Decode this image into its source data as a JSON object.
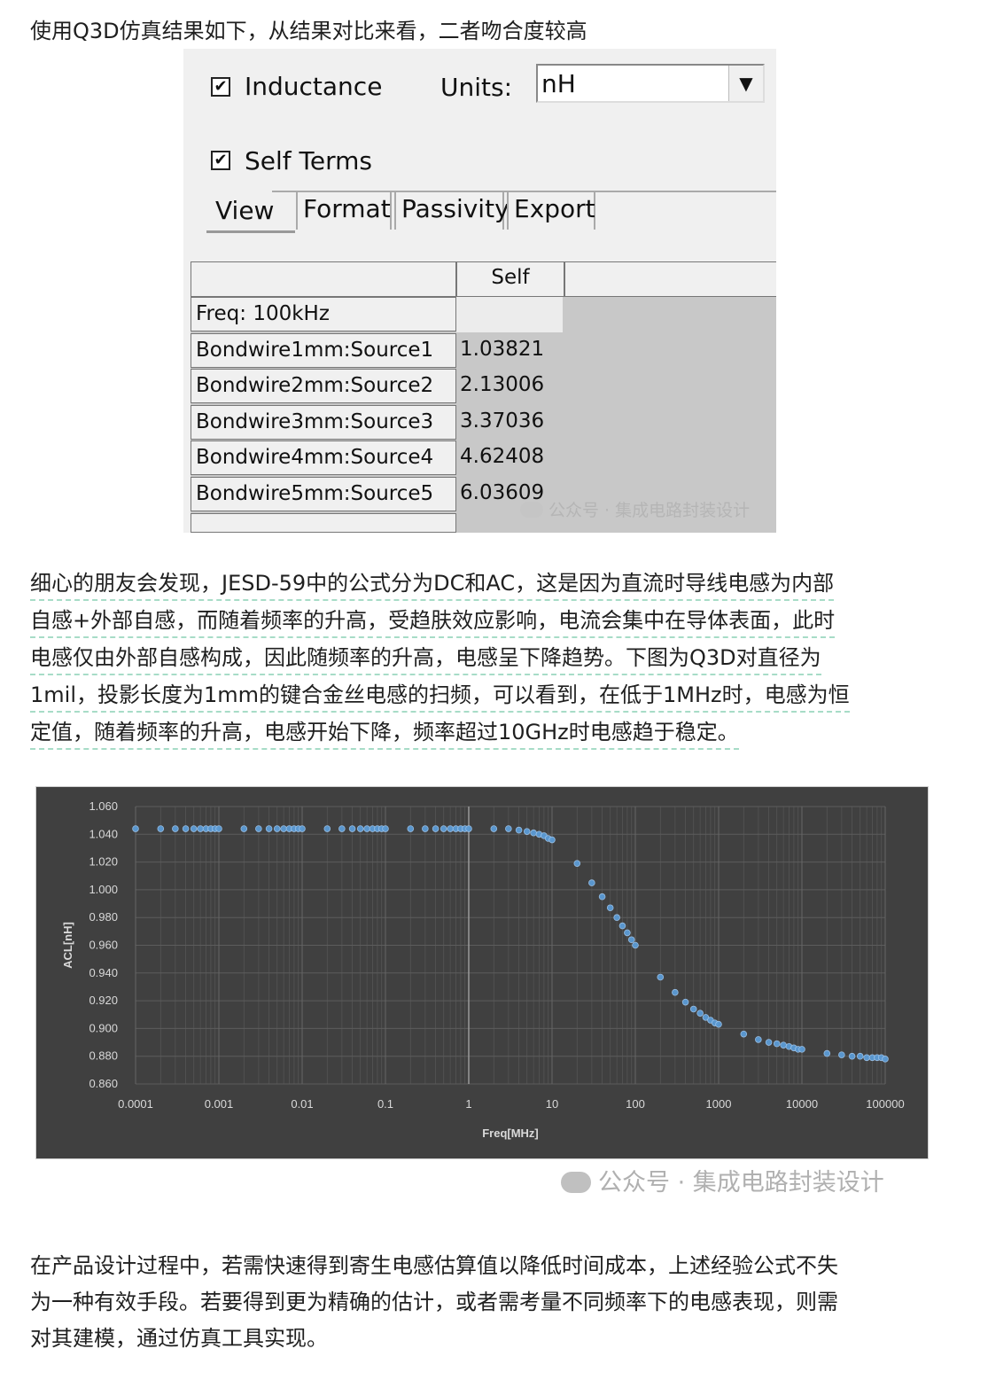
{
  "intro_text": "使用Q3D仿真结果如下，从结果对比来看，二者吻合度较高",
  "q3d": {
    "inductance_label": "Inductance",
    "inductance_checked": true,
    "units_label": "Units:",
    "units_value": "nH",
    "self_terms_label": "Self Terms",
    "self_terms_checked": true,
    "tabs": [
      "View",
      "Format",
      "Passivity",
      "Export"
    ],
    "column_header": "Self",
    "freq_label": "Freq: 100kHz",
    "rows": [
      {
        "name": "Bondwire1mm:Source1",
        "value": "1.03821"
      },
      {
        "name": "Bondwire2mm:Source2",
        "value": "2.13006"
      },
      {
        "name": "Bondwire3mm:Source3",
        "value": "3.37036"
      },
      {
        "name": "Bondwire4mm:Source4",
        "value": "4.62408"
      },
      {
        "name": "Bondwire5mm:Source5",
        "value": "6.03609"
      }
    ],
    "watermark": "公众号 · 集成电路封装设计"
  },
  "mid_lines": [
    "细心的朋友会发现，JESD-59中的公式分为DC和AC，这是因为直流时导线电感为内部",
    "自感+外部自感，而随着频率的升高，受趋肤效应影响，电流会集中在导体表面，此时",
    "电感仅由外部自感构成，因此随频率的升高，电感呈下降趋势。下图为Q3D对直径为",
    "1mil，投影长度为1mm的键合金丝电感的扫频，可以看到，在低于1MHz时，电感为恒",
    "定值，随着频率的升高，电感开始下降，频率超过10GHz时电感趋于稳定。"
  ],
  "chart_data": {
    "type": "scatter",
    "xlabel": "Freq[MHz]",
    "ylabel": "ACL[nH]",
    "xscale": "log",
    "xlim": [
      0.0001,
      100000
    ],
    "ylim": [
      0.86,
      1.06
    ],
    "x_ticks": [
      "0.0001",
      "0.001",
      "0.01",
      "0.1",
      "1",
      "10",
      "100",
      "1000",
      "10000",
      "100000"
    ],
    "y_ticks": [
      "1.060",
      "1.040",
      "1.020",
      "1.000",
      "0.980",
      "0.960",
      "0.940",
      "0.920",
      "0.900",
      "0.880",
      "0.860"
    ],
    "grid": "on",
    "background": "#404040",
    "point_color": "#5b9bd5",
    "series": [
      {
        "points": [
          [
            0.0001,
            1.044
          ],
          [
            0.0002,
            1.044
          ],
          [
            0.0003,
            1.044
          ],
          [
            0.0004,
            1.044
          ],
          [
            0.0005,
            1.044
          ],
          [
            0.0006,
            1.044
          ],
          [
            0.0007,
            1.044
          ],
          [
            0.0008,
            1.044
          ],
          [
            0.0009,
            1.044
          ],
          [
            0.001,
            1.044
          ],
          [
            0.002,
            1.044
          ],
          [
            0.003,
            1.044
          ],
          [
            0.004,
            1.044
          ],
          [
            0.005,
            1.044
          ],
          [
            0.006,
            1.044
          ],
          [
            0.007,
            1.044
          ],
          [
            0.008,
            1.044
          ],
          [
            0.009,
            1.044
          ],
          [
            0.01,
            1.044
          ],
          [
            0.02,
            1.044
          ],
          [
            0.03,
            1.044
          ],
          [
            0.04,
            1.044
          ],
          [
            0.05,
            1.044
          ],
          [
            0.06,
            1.044
          ],
          [
            0.07,
            1.044
          ],
          [
            0.08,
            1.044
          ],
          [
            0.09,
            1.044
          ],
          [
            0.1,
            1.044
          ],
          [
            0.2,
            1.044
          ],
          [
            0.3,
            1.044
          ],
          [
            0.4,
            1.044
          ],
          [
            0.5,
            1.044
          ],
          [
            0.6,
            1.044
          ],
          [
            0.7,
            1.044
          ],
          [
            0.8,
            1.044
          ],
          [
            0.9,
            1.044
          ],
          [
            1,
            1.044
          ],
          [
            2,
            1.044
          ],
          [
            3,
            1.044
          ],
          [
            4,
            1.043
          ],
          [
            5,
            1.042
          ],
          [
            6,
            1.041
          ],
          [
            7,
            1.04
          ],
          [
            8,
            1.039
          ],
          [
            9,
            1.037
          ],
          [
            10,
            1.036
          ],
          [
            20,
            1.019
          ],
          [
            30,
            1.005
          ],
          [
            40,
            0.995
          ],
          [
            50,
            0.987
          ],
          [
            60,
            0.98
          ],
          [
            70,
            0.974
          ],
          [
            80,
            0.969
          ],
          [
            90,
            0.964
          ],
          [
            100,
            0.96
          ],
          [
            200,
            0.937
          ],
          [
            300,
            0.926
          ],
          [
            400,
            0.919
          ],
          [
            500,
            0.914
          ],
          [
            600,
            0.911
          ],
          [
            700,
            0.908
          ],
          [
            800,
            0.906
          ],
          [
            900,
            0.904
          ],
          [
            1000,
            0.903
          ],
          [
            2000,
            0.896
          ],
          [
            3000,
            0.892
          ],
          [
            4000,
            0.89
          ],
          [
            5000,
            0.889
          ],
          [
            6000,
            0.888
          ],
          [
            7000,
            0.887
          ],
          [
            8000,
            0.886
          ],
          [
            9000,
            0.885
          ],
          [
            10000,
            0.885
          ],
          [
            20000,
            0.882
          ],
          [
            30000,
            0.881
          ],
          [
            40000,
            0.88
          ],
          [
            50000,
            0.88
          ],
          [
            60000,
            0.879
          ],
          [
            70000,
            0.879
          ],
          [
            80000,
            0.879
          ],
          [
            90000,
            0.879
          ],
          [
            100000,
            0.878
          ]
        ]
      }
    ]
  },
  "chart_watermark": "公众号 · 集成电路封装设计",
  "end_lines": [
    "在产品设计过程中，若需快速得到寄生电感估算值以降低时间成本，上述经验公式不失",
    "为一种有效手段。若要得到更为精确的估计，或者需考量不同频率下的电感表现，则需",
    "对其建模，通过仿真工具实现。"
  ]
}
